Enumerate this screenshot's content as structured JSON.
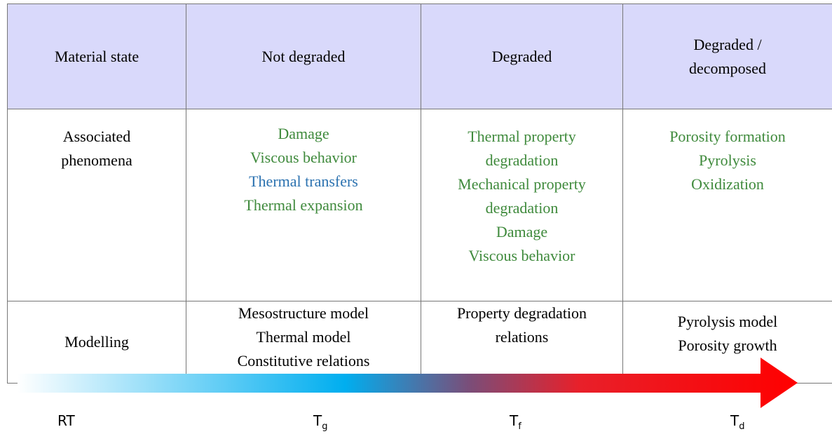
{
  "table": {
    "header": [
      "Material state",
      "Not degraded",
      "Degraded",
      "Degraded / decomposed"
    ],
    "phenomena": {
      "label": "Associated phenomena",
      "columns": [
        [
          {
            "text": "Damage",
            "color": "#3f8a3c"
          },
          {
            "text": "Viscous behavior",
            "color": "#3f8a3c"
          },
          {
            "text": "Thermal transfers",
            "color": "#2b72b0"
          },
          {
            "text": "Thermal expansion",
            "color": "#3f8a3c"
          }
        ],
        [
          {
            "text": "Thermal property degradation",
            "color": "#3f8a3c"
          },
          {
            "text": "Mechanical property degradation",
            "color": "#3f8a3c"
          },
          {
            "text": "Damage",
            "color": "#3f8a3c"
          },
          {
            "text": "Viscous behavior",
            "color": "#3f8a3c"
          }
        ],
        [
          {
            "text": "Porosity formation",
            "color": "#3f8a3c"
          },
          {
            "text": "Pyrolysis",
            "color": "#3f8a3c"
          },
          {
            "text": "Oxidization",
            "color": "#3f8a3c"
          }
        ]
      ]
    },
    "modelling": {
      "label": "Modelling",
      "columns": [
        [
          "Mesostructure model",
          "Thermal model",
          "Constitutive relations"
        ],
        [
          "Property degradation relations"
        ],
        [
          "Pyrolysis model",
          "Porosity growth"
        ]
      ]
    }
  },
  "temperatures": [
    {
      "main": "RT"
    },
    {
      "main": "T",
      "sub": "g"
    },
    {
      "main": "T",
      "sub": "f"
    },
    {
      "main": "T",
      "sub": "d"
    }
  ]
}
